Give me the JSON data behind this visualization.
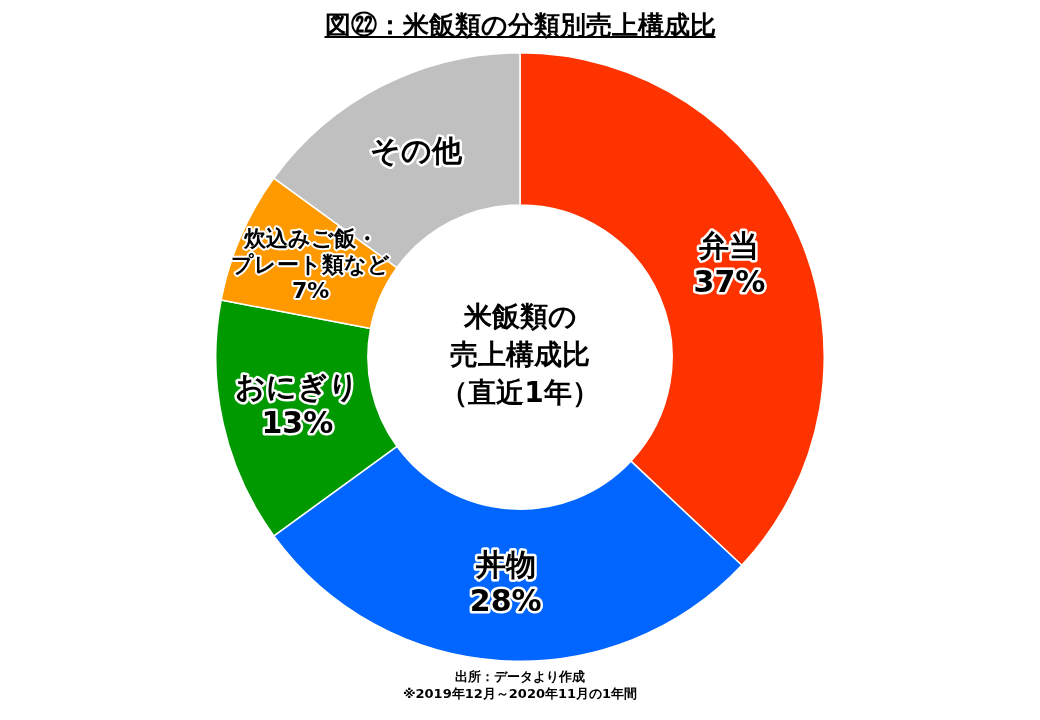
{
  "chart_data": {
    "type": "donut",
    "title": "図㉒：米飯類の分類別売上構成比",
    "categories": [
      "弁当",
      "丼物",
      "おにぎり",
      "炊込みご飯・プレート類など",
      "その他"
    ],
    "values": [
      37,
      28,
      13,
      7,
      15
    ],
    "value_labels": [
      "37%",
      "28%",
      "13%",
      "7%",
      null
    ],
    "colors": [
      "#ff3300",
      "#0066ff",
      "#009900",
      "#ff9900",
      "#c0c0c0"
    ],
    "legend": false,
    "annotations": [
      {
        "text": "米飯類の"
      },
      {
        "text": "売上構成比"
      },
      {
        "text": "（直近1年）"
      },
      "出所：データより作成",
      "※2019年12月～2020年11月の1年間"
    ]
  }
}
